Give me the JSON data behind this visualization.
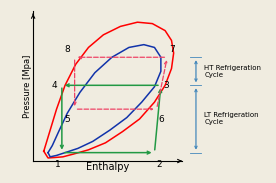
{
  "bg_color": "#f0ece0",
  "ax_bg": "#f0ece0",
  "xlabel": "Enthalpy",
  "ylabel": "Pressure [Mpa]",
  "xlabel_fontsize": 7,
  "ylabel_fontsize": 6,
  "label_fontsize": 6.5,
  "red_dome_x": [
    0.1,
    0.11,
    0.13,
    0.16,
    0.2,
    0.25,
    0.31,
    0.38,
    0.46,
    0.54,
    0.61,
    0.67,
    0.7,
    0.71,
    0.7,
    0.67,
    0.62,
    0.55,
    0.47,
    0.39,
    0.31,
    0.24,
    0.19,
    0.15,
    0.12,
    0.1
  ],
  "red_dome_y": [
    0.05,
    0.1,
    0.2,
    0.35,
    0.52,
    0.67,
    0.79,
    0.88,
    0.94,
    0.97,
    0.96,
    0.91,
    0.84,
    0.75,
    0.64,
    0.52,
    0.4,
    0.28,
    0.19,
    0.11,
    0.06,
    0.03,
    0.01,
    0.005,
    0.002,
    0.05
  ],
  "blue_dome_x": [
    0.12,
    0.14,
    0.17,
    0.21,
    0.27,
    0.34,
    0.42,
    0.5,
    0.57,
    0.62,
    0.65,
    0.65,
    0.62,
    0.56,
    0.49,
    0.41,
    0.33,
    0.26,
    0.2,
    0.16,
    0.13,
    0.12
  ],
  "blue_dome_y": [
    0.04,
    0.09,
    0.19,
    0.32,
    0.47,
    0.61,
    0.72,
    0.79,
    0.81,
    0.79,
    0.72,
    0.62,
    0.51,
    0.4,
    0.29,
    0.2,
    0.12,
    0.07,
    0.04,
    0.02,
    0.01,
    0.04
  ],
  "pt1": [
    0.185,
    0.04
  ],
  "pt2": [
    0.62,
    0.04
  ],
  "pt3": [
    0.65,
    0.52
  ],
  "pt4": [
    0.185,
    0.52
  ],
  "pt5": [
    0.245,
    0.35
  ],
  "pt6": [
    0.63,
    0.35
  ],
  "pt7": [
    0.68,
    0.72
  ],
  "pt8": [
    0.245,
    0.72
  ],
  "green_color": "#229944",
  "pink_color": "#ee4466",
  "blue_arrow_color": "#4488bb",
  "xlim": [
    0.05,
    0.75
  ],
  "ylim": [
    -0.02,
    1.05
  ],
  "ht_label": "HT Refrigeration\nCycle",
  "lt_label": "LT Refrigeration\nCycle"
}
